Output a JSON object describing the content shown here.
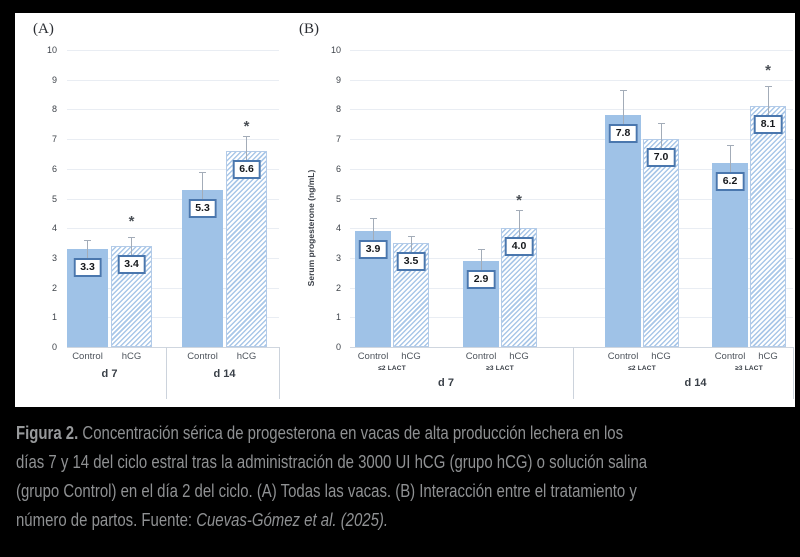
{
  "chart_data": [
    {
      "panel_label": "(A)",
      "type": "bar",
      "ylim": [
        0,
        10
      ],
      "ytick_step": 1,
      "ylabel": "",
      "sig_marker": "*",
      "groups": [
        {
          "label": "d 7",
          "bars": [
            {
              "series": "Control",
              "value": 3.3,
              "err_hi": 3.6,
              "sig": false
            },
            {
              "series": "hCG",
              "value": 3.4,
              "err_hi": 3.7,
              "sig": true,
              "sig_y": 4.2
            }
          ]
        },
        {
          "label": "d 14",
          "bars": [
            {
              "series": "Control",
              "value": 5.3,
              "err_hi": 5.9,
              "sig": false
            },
            {
              "series": "hCG",
              "value": 6.6,
              "err_hi": 7.1,
              "sig": true,
              "sig_y": 7.4
            }
          ]
        }
      ]
    },
    {
      "panel_label": "(B)",
      "type": "bar",
      "ylim": [
        0,
        10
      ],
      "ytick_step": 1,
      "ylabel": "Serum progesterone (ng/mL)",
      "sig_marker": "*",
      "groups": [
        {
          "label": "d 7",
          "subgroups": [
            {
              "label": "≤2 LACT",
              "bars": [
                {
                  "series": "Control",
                  "value": 3.9,
                  "err_hi": 4.35,
                  "sig": false
                },
                {
                  "series": "hCG",
                  "value": 3.5,
                  "err_hi": 3.75,
                  "sig": false
                }
              ]
            },
            {
              "label": "≥3 LACT",
              "bars": [
                {
                  "series": "Control",
                  "value": 2.9,
                  "err_hi": 3.3,
                  "sig": false
                },
                {
                  "series": "hCG",
                  "value": 4.0,
                  "err_hi": 4.6,
                  "sig": true,
                  "sig_y": 4.9
                }
              ]
            }
          ]
        },
        {
          "label": "d 14",
          "subgroups": [
            {
              "label": "≤2 LACT",
              "bars": [
                {
                  "series": "Control",
                  "value": 7.8,
                  "err_hi": 8.65,
                  "sig": false
                },
                {
                  "series": "hCG",
                  "value": 7.0,
                  "err_hi": 7.55,
                  "sig": false
                }
              ]
            },
            {
              "label": "≥3 LACT",
              "bars": [
                {
                  "series": "Control",
                  "value": 6.2,
                  "err_hi": 6.8,
                  "sig": false
                },
                {
                  "series": "hCG",
                  "value": 8.1,
                  "err_hi": 8.8,
                  "sig": true,
                  "sig_y": 9.3
                }
              ]
            }
          ]
        }
      ]
    }
  ],
  "colors": {
    "bar_fill": "#9fc2e7",
    "hatch_stripe": "#a9c7e8",
    "hatch_border": "#b3cbe8",
    "label_box_border": "#4a77ae",
    "gridline": "#e9edf3",
    "background": "#000000",
    "panel_bg": "#ffffff",
    "caption_text": "#8f9193"
  },
  "caption": {
    "label": "Figura 2.",
    "line1_rest": " Concentración sérica de progesterona en vacas de alta producción lechera en los",
    "line2": "días 7 y 14 del ciclo estral tras la administración de 3000 UI hCG (grupo hCG) o solución salina",
    "line3": "(grupo Control) en el día 2 del ciclo. (A) Todas las vacas. (B) Interacción entre el tratamiento y",
    "line4_prefix": "número de partos. Fuente: ",
    "source": "Cuevas-Gómez et al. (2025)."
  }
}
